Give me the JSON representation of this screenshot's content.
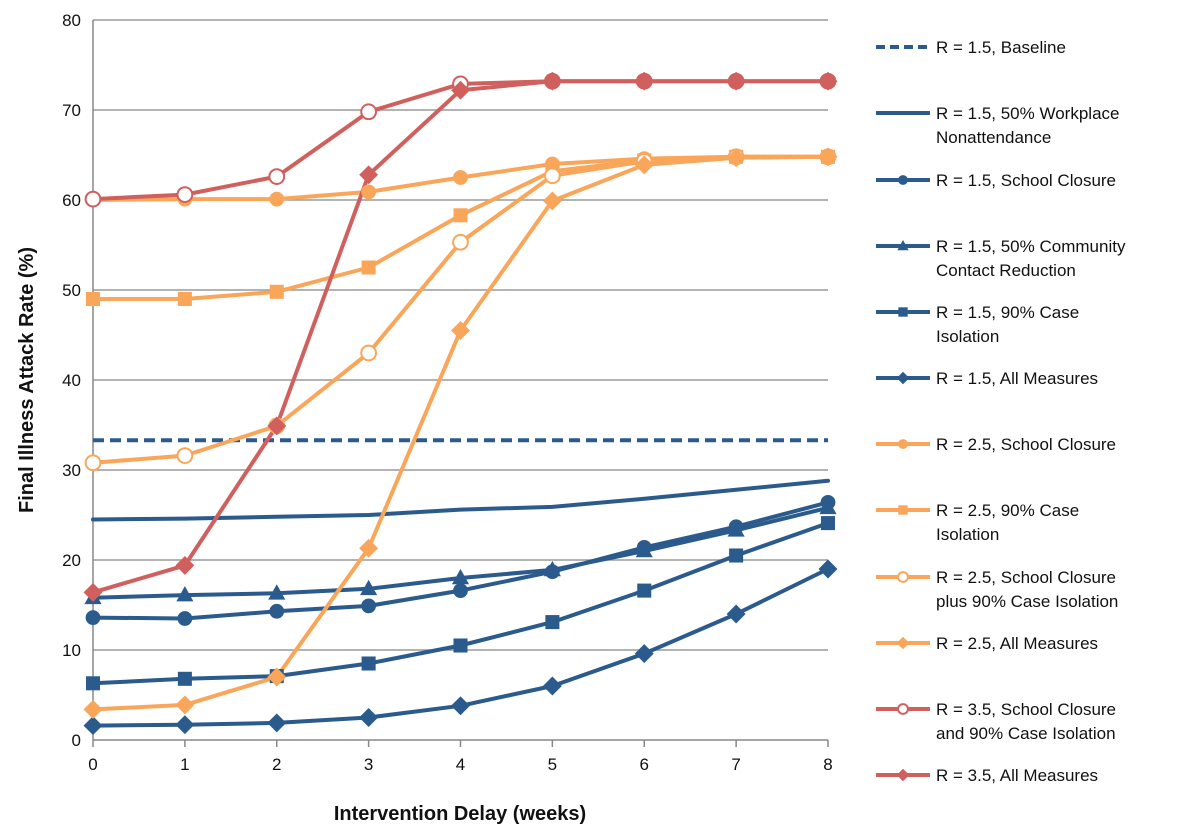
{
  "chart_data": {
    "type": "line",
    "xlabel": "Intervention Delay (weeks)",
    "ylabel": "Final Illness Attack Rate (%)",
    "xlim": [
      0,
      8
    ],
    "ylim": [
      0,
      80
    ],
    "x_ticks": [
      0,
      1,
      2,
      3,
      4,
      5,
      6,
      7,
      8
    ],
    "y_ticks": [
      0,
      10,
      20,
      30,
      40,
      50,
      60,
      70,
      80
    ],
    "grid": "horizontal",
    "legend_position": "right",
    "x": [
      0,
      1,
      2,
      3,
      4,
      5,
      6,
      7,
      8
    ],
    "series": [
      {
        "name": "R = 1.5, Baseline",
        "color": "#2B5A8D",
        "dash": "dashed",
        "marker": "none",
        "values": [
          33.3,
          33.3,
          33.3,
          33.3,
          33.3,
          33.3,
          33.3,
          33.3,
          33.3
        ]
      },
      {
        "name": "R = 1.5, 50% Workplace Nonattendance",
        "color": "#2B5A8D",
        "dash": "solid",
        "marker": "none",
        "values": [
          24.5,
          24.6,
          24.8,
          25.0,
          25.6,
          25.9,
          26.8,
          27.8,
          28.8
        ]
      },
      {
        "name": "R = 1.5, School Closure",
        "color": "#2B5A8D",
        "dash": "solid",
        "marker": "circle",
        "values": [
          13.6,
          13.5,
          14.3,
          14.9,
          16.6,
          18.7,
          21.4,
          23.7,
          26.4
        ]
      },
      {
        "name": "R = 1.5, 50% Community Contact Reduction",
        "color": "#2B5A8D",
        "dash": "solid",
        "marker": "triangle",
        "values": [
          15.8,
          16.1,
          16.3,
          16.8,
          18.0,
          18.9,
          21.0,
          23.3,
          25.8
        ]
      },
      {
        "name": "R = 1.5, 90% Case Isolation",
        "color": "#2B5A8D",
        "dash": "solid",
        "marker": "square",
        "values": [
          6.3,
          6.8,
          7.1,
          8.5,
          10.5,
          13.1,
          16.6,
          20.5,
          24.1
        ]
      },
      {
        "name": "R = 1.5, All Measures",
        "color": "#2B5A8D",
        "dash": "solid",
        "marker": "diamond",
        "values": [
          1.6,
          1.7,
          1.9,
          2.5,
          3.8,
          6.0,
          9.6,
          14.0,
          19.0
        ]
      },
      {
        "name": "R = 2.5, School Closure",
        "color": "#F9A65A",
        "dash": "solid",
        "marker": "circle",
        "values": [
          60.0,
          60.1,
          60.1,
          60.9,
          62.5,
          64.0,
          64.6,
          64.8,
          64.8
        ]
      },
      {
        "name": "R = 2.5, 90% Case Isolation",
        "color": "#F9A65A",
        "dash": "solid",
        "marker": "square",
        "values": [
          49.0,
          49.0,
          49.8,
          52.5,
          58.3,
          63.2,
          64.4,
          64.8,
          64.8
        ]
      },
      {
        "name": "R = 2.5, School Closure plus 90% Case Isolation",
        "color": "#F9A65A",
        "dash": "solid",
        "marker": "circle-open",
        "values": [
          30.8,
          31.6,
          34.9,
          43.0,
          55.3,
          62.7,
          64.3,
          64.8,
          64.8
        ]
      },
      {
        "name": "R = 2.5, All Measures",
        "color": "#F9A65A",
        "dash": "solid",
        "marker": "diamond",
        "values": [
          3.4,
          3.9,
          7.0,
          21.3,
          45.5,
          59.9,
          63.9,
          64.7,
          64.8
        ]
      },
      {
        "name": "R = 3.5, School Closure and 90% Case Isolation",
        "color": "#D0605E",
        "dash": "solid",
        "marker": "circle-open",
        "values": [
          60.1,
          60.6,
          62.6,
          69.8,
          72.9,
          73.2,
          73.2,
          73.2,
          73.2
        ]
      },
      {
        "name": "R = 3.5, All Measures",
        "color": "#D0605E",
        "dash": "solid",
        "marker": "diamond",
        "values": [
          16.4,
          19.4,
          34.9,
          62.8,
          72.2,
          73.2,
          73.2,
          73.2,
          73.2
        ]
      }
    ]
  }
}
